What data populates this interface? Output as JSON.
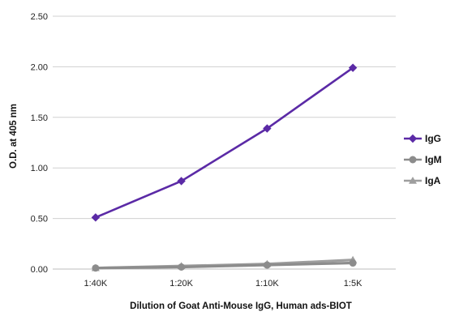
{
  "chart_data": {
    "type": "line",
    "title": "",
    "xlabel": "Dilution of Goat Anti-Mouse IgG, Human ads-BIOT",
    "ylabel": "O.D. at 405 nm",
    "categories": [
      "1:40K",
      "1:20K",
      "1:10K",
      "1:5K"
    ],
    "ylim": [
      0,
      2.5
    ],
    "yticks": [
      "0.00",
      "0.50",
      "1.00",
      "1.50",
      "2.00",
      "2.50"
    ],
    "grid": true,
    "legend_position": "right",
    "series": [
      {
        "name": "IgG",
        "values": [
          0.51,
          0.87,
          1.39,
          1.99
        ],
        "color": "#5B2AA6",
        "marker": "diamond"
      },
      {
        "name": "IgM",
        "values": [
          0.01,
          0.02,
          0.04,
          0.06
        ],
        "color": "#8C8C8C",
        "marker": "circle"
      },
      {
        "name": "IgA",
        "values": [
          0.01,
          0.03,
          0.05,
          0.09
        ],
        "color": "#9E9E9E",
        "marker": "triangle"
      }
    ]
  }
}
